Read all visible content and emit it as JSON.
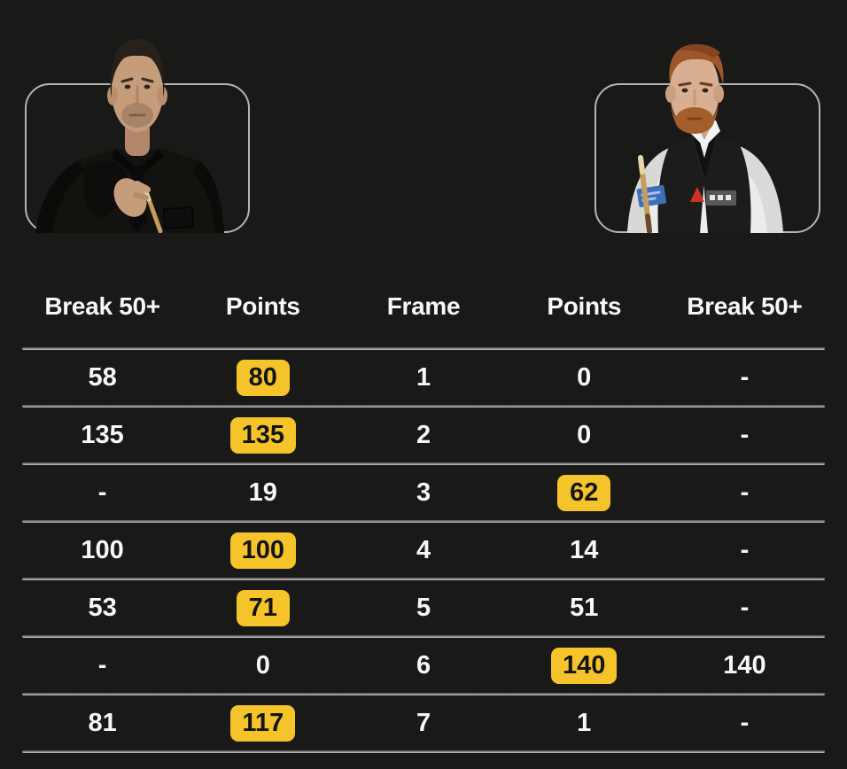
{
  "colors": {
    "background": "#191917",
    "divider_light": "#c3c3c3",
    "divider_dark": "#4c4c4c",
    "highlight": "#f5c42a",
    "text": "#f7f7f5",
    "badge_text": "#141414",
    "frame_border": "#b4b4b4"
  },
  "players": {
    "left_photo": "player-left-portrait",
    "right_photo": "player-right-portrait"
  },
  "table": {
    "headers": [
      "Break 50+",
      "Points",
      "Frame",
      "Points",
      "Break 50+"
    ],
    "rows": [
      {
        "cells": [
          "58",
          "80",
          "1",
          "0",
          "-"
        ],
        "highlight": [
          1
        ]
      },
      {
        "cells": [
          "135",
          "135",
          "2",
          "0",
          "-"
        ],
        "highlight": [
          1
        ]
      },
      {
        "cells": [
          "-",
          "19",
          "3",
          "62",
          "-"
        ],
        "highlight": [
          3
        ]
      },
      {
        "cells": [
          "100",
          "100",
          "4",
          "14",
          "-"
        ],
        "highlight": [
          1
        ]
      },
      {
        "cells": [
          "53",
          "71",
          "5",
          "51",
          "-"
        ],
        "highlight": [
          1
        ]
      },
      {
        "cells": [
          "-",
          "0",
          "6",
          "140",
          "140"
        ],
        "highlight": [
          3
        ]
      },
      {
        "cells": [
          "81",
          "117",
          "7",
          "1",
          "-"
        ],
        "highlight": [
          1
        ]
      }
    ]
  }
}
